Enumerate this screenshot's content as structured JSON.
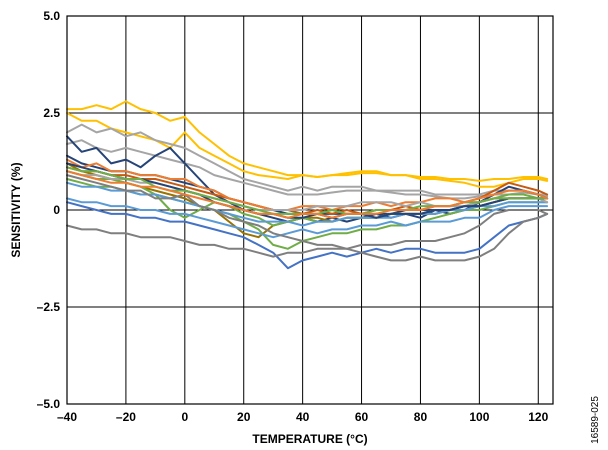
{
  "chart_data": {
    "type": "line",
    "xlabel": "TEMPERATURE (°C)",
    "ylabel": "SENSITIVITY (%)",
    "xlim": [
      -40,
      125
    ],
    "ylim": [
      -5.0,
      5.0
    ],
    "x_ticks": [
      -40,
      -20,
      0,
      20,
      40,
      60,
      80,
      100,
      120
    ],
    "x_tick_labels": [
      "–40",
      "–20",
      "0",
      "20",
      "40",
      "60",
      "80",
      "100",
      "120"
    ],
    "y_ticks": [
      -5.0,
      -2.5,
      0,
      2.5,
      5.0
    ],
    "y_tick_labels": [
      "–5.0",
      "–2.5",
      "0",
      "2.5",
      "5.0"
    ],
    "grid": true,
    "legend": "none",
    "figure_id": "16589-025",
    "x": [
      -40,
      -35,
      -30,
      -25,
      -20,
      -15,
      -10,
      -5,
      0,
      5,
      10,
      15,
      20,
      25,
      30,
      35,
      40,
      45,
      50,
      55,
      60,
      65,
      70,
      75,
      80,
      85,
      90,
      95,
      100,
      105,
      110,
      115,
      120,
      123
    ],
    "series": [
      {
        "color": "#FFC000",
        "values": [
          2.6,
          2.6,
          2.7,
          2.6,
          2.8,
          2.6,
          2.5,
          2.3,
          2.4,
          2.0,
          1.7,
          1.4,
          1.2,
          1.1,
          1.0,
          0.9,
          0.9,
          0.85,
          0.9,
          0.9,
          0.95,
          0.95,
          0.9,
          0.9,
          0.85,
          0.85,
          0.8,
          0.8,
          0.75,
          0.8,
          0.8,
          0.85,
          0.85,
          0.8
        ]
      },
      {
        "color": "#FFC000",
        "values": [
          2.5,
          2.3,
          2.3,
          2.1,
          2.0,
          1.9,
          1.8,
          1.6,
          2.0,
          1.6,
          1.4,
          1.2,
          1.0,
          0.9,
          0.85,
          0.8,
          0.9,
          0.85,
          0.9,
          0.95,
          1.0,
          1.0,
          0.9,
          0.9,
          0.8,
          0.8,
          0.75,
          0.7,
          0.6,
          0.6,
          0.7,
          0.8,
          0.8,
          0.75
        ]
      },
      {
        "color": "#A5A5A5",
        "values": [
          2.0,
          2.2,
          2.0,
          2.1,
          1.9,
          2.0,
          1.8,
          1.7,
          1.6,
          1.4,
          1.2,
          1.0,
          0.8,
          0.7,
          0.6,
          0.5,
          0.6,
          0.5,
          0.6,
          0.6,
          0.6,
          0.5,
          0.5,
          0.5,
          0.5,
          0.4,
          0.4,
          0.4,
          0.4,
          0.5,
          0.5,
          0.5,
          0.4,
          0.4
        ]
      },
      {
        "color": "#A5A5A5",
        "values": [
          1.7,
          1.8,
          1.6,
          1.5,
          1.6,
          1.5,
          1.4,
          1.3,
          1.2,
          1.1,
          0.9,
          0.8,
          0.7,
          0.6,
          0.5,
          0.4,
          0.4,
          0.4,
          0.45,
          0.5,
          0.5,
          0.5,
          0.45,
          0.4,
          0.4,
          0.35,
          0.3,
          0.3,
          0.35,
          0.4,
          0.4,
          0.45,
          0.4,
          0.35
        ]
      },
      {
        "color": "#264478",
        "values": [
          1.9,
          1.5,
          1.6,
          1.2,
          1.3,
          1.1,
          1.4,
          1.6,
          1.2,
          0.8,
          0.4,
          0.2,
          0.0,
          -0.1,
          -0.2,
          -0.3,
          -0.2,
          -0.3,
          -0.2,
          -0.3,
          -0.2,
          -0.1,
          -0.2,
          -0.1,
          -0.2,
          0.0,
          -0.1,
          0.0,
          0.2,
          0.4,
          0.6,
          0.5,
          0.4,
          0.3
        ]
      },
      {
        "color": "#264478",
        "values": [
          1.4,
          1.2,
          1.1,
          1.0,
          1.0,
          0.9,
          0.9,
          0.8,
          0.7,
          0.6,
          0.5,
          0.3,
          0.2,
          0.1,
          0.0,
          -0.1,
          -0.1,
          -0.1,
          -0.1,
          -0.1,
          -0.1,
          -0.1,
          -0.1,
          0.0,
          0.0,
          0.0,
          0.0,
          0.1,
          0.1,
          0.2,
          0.3,
          0.3,
          0.3,
          0.3
        ]
      },
      {
        "color": "#C55A11",
        "values": [
          1.1,
          1.0,
          1.0,
          0.9,
          0.9,
          0.8,
          0.8,
          0.7,
          0.6,
          0.5,
          0.4,
          0.3,
          0.2,
          0.1,
          0.0,
          0.0,
          -0.1,
          0.0,
          -0.1,
          0.0,
          -0.1,
          0.0,
          0.0,
          0.1,
          0.0,
          0.1,
          0.1,
          0.2,
          0.3,
          0.5,
          0.7,
          0.6,
          0.5,
          0.4
        ]
      },
      {
        "color": "#ED7D31",
        "values": [
          1.3,
          1.1,
          1.2,
          1.0,
          1.0,
          0.9,
          0.9,
          0.8,
          0.8,
          0.6,
          0.5,
          0.3,
          0.2,
          0.1,
          0.0,
          0.0,
          0.1,
          0.1,
          0.0,
          0.1,
          0.1,
          0.2,
          0.1,
          0.2,
          0.2,
          0.3,
          0.3,
          0.2,
          0.2,
          0.3,
          0.3,
          0.3,
          0.3,
          0.2
        ]
      },
      {
        "color": "#997300",
        "values": [
          1.2,
          1.0,
          0.9,
          0.8,
          0.7,
          0.6,
          0.5,
          0.4,
          0.3,
          0.1,
          0.0,
          -0.3,
          -0.6,
          -0.7,
          -0.4,
          -0.3,
          -0.2,
          -0.2,
          -0.3,
          -0.2,
          -0.2,
          -0.2,
          -0.1,
          -0.1,
          -0.1,
          -0.1,
          0.0,
          0.0,
          0.1,
          0.2,
          0.3,
          0.3,
          0.3,
          0.3
        ]
      },
      {
        "color": "#70AD47",
        "values": [
          1.0,
          0.9,
          0.8,
          0.8,
          0.7,
          0.6,
          0.4,
          0.0,
          -0.2,
          0.0,
          0.2,
          0.1,
          -0.1,
          -0.2,
          -0.4,
          -0.3,
          -0.2,
          -0.3,
          -0.3,
          -0.2,
          -0.2,
          -0.2,
          -0.1,
          -0.1,
          -0.1,
          0.0,
          0.0,
          0.1,
          0.2,
          0.3,
          0.4,
          0.4,
          0.3,
          0.3
        ]
      },
      {
        "color": "#70AD47",
        "values": [
          0.8,
          0.7,
          0.6,
          0.6,
          0.5,
          0.4,
          0.4,
          0.3,
          0.2,
          0.1,
          0.0,
          -0.1,
          -0.3,
          -0.5,
          -0.9,
          -1.0,
          -0.8,
          -0.7,
          -0.6,
          -0.6,
          -0.5,
          -0.5,
          -0.4,
          -0.4,
          -0.3,
          -0.2,
          -0.1,
          0.0,
          0.0,
          0.1,
          0.2,
          0.2,
          0.2,
          0.2
        ]
      },
      {
        "color": "#4472C4",
        "values": [
          0.2,
          0.1,
          0.0,
          -0.1,
          -0.1,
          -0.2,
          -0.2,
          -0.3,
          -0.3,
          -0.4,
          -0.5,
          -0.6,
          -0.7,
          -0.9,
          -1.1,
          -1.5,
          -1.3,
          -1.2,
          -1.1,
          -1.2,
          -1.1,
          -1.0,
          -1.1,
          -1.0,
          -1.0,
          -1.1,
          -1.1,
          -1.1,
          -1.0,
          -0.7,
          -0.4,
          -0.3,
          -0.2,
          -0.1
        ]
      },
      {
        "color": "#5B9BD5",
        "values": [
          0.3,
          0.2,
          0.2,
          0.1,
          0.1,
          0.0,
          0.0,
          -0.1,
          -0.1,
          -0.2,
          -0.3,
          -0.4,
          -0.5,
          -0.6,
          -0.7,
          -0.6,
          -0.5,
          -0.6,
          -0.5,
          -0.5,
          -0.4,
          -0.4,
          -0.3,
          -0.4,
          -0.3,
          -0.3,
          -0.3,
          -0.2,
          -0.2,
          0.0,
          0.1,
          0.1,
          0.1,
          0.1
        ]
      },
      {
        "color": "#5B9BD5",
        "values": [
          0.7,
          0.6,
          0.6,
          0.5,
          0.5,
          0.4,
          0.4,
          0.3,
          0.2,
          0.1,
          0.0,
          -0.1,
          -0.2,
          -0.3,
          -0.3,
          -0.3,
          -0.4,
          -0.3,
          -0.3,
          -0.2,
          -0.2,
          -0.2,
          -0.2,
          -0.1,
          -0.1,
          -0.1,
          0.0,
          0.0,
          0.1,
          0.1,
          0.2,
          0.2,
          0.2,
          0.2
        ]
      },
      {
        "color": "#7F7F7F",
        "values": [
          -0.4,
          -0.5,
          -0.5,
          -0.6,
          -0.6,
          -0.7,
          -0.7,
          -0.7,
          -0.8,
          -0.9,
          -0.9,
          -1.0,
          -1.0,
          -1.1,
          -1.2,
          -1.1,
          -1.1,
          -1.0,
          -1.0,
          -1.0,
          -0.9,
          -0.9,
          -0.9,
          -0.8,
          -0.8,
          -0.8,
          -0.7,
          -0.6,
          -0.4,
          -0.1,
          0.0,
          0.0,
          0.0,
          -0.1
        ]
      },
      {
        "color": "#7F7F7F",
        "values": [
          0.9,
          0.8,
          0.7,
          0.6,
          0.5,
          0.5,
          0.3,
          0.3,
          0.4,
          0.1,
          0.0,
          -0.2,
          -0.3,
          -0.4,
          -0.6,
          -0.7,
          -0.8,
          -0.9,
          -0.9,
          -1.0,
          -1.1,
          -1.2,
          -1.3,
          -1.3,
          -1.2,
          -1.3,
          -1.3,
          -1.3,
          -1.2,
          -1.0,
          -0.6,
          -0.3,
          -0.2,
          -0.1
        ]
      },
      {
        "color": "#A5A5A5",
        "values": [
          1.0,
          0.9,
          0.9,
          0.8,
          0.8,
          0.7,
          0.7,
          0.6,
          0.5,
          0.4,
          0.3,
          0.2,
          0.1,
          0.0,
          0.0,
          0.0,
          0.0,
          0.1,
          0.1,
          0.1,
          0.2,
          0.2,
          0.2,
          0.1,
          0.2,
          0.1,
          0.1,
          0.1,
          0.2,
          0.3,
          0.3,
          0.3,
          0.3,
          0.2
        ]
      },
      {
        "color": "#264478",
        "values": [
          1.2,
          1.1,
          1.0,
          0.9,
          0.8,
          0.8,
          0.7,
          0.6,
          0.5,
          0.4,
          0.2,
          0.1,
          0.0,
          -0.1,
          -0.1,
          -0.2,
          -0.2,
          -0.1,
          -0.2,
          -0.1,
          -0.1,
          -0.2,
          -0.1,
          -0.1,
          -0.1,
          0.0,
          0.0,
          0.1,
          0.1,
          0.2,
          0.3,
          0.3,
          0.3,
          0.3
        ]
      },
      {
        "color": "#70AD47",
        "values": [
          1.1,
          1.0,
          1.0,
          0.9,
          0.8,
          0.8,
          0.6,
          0.5,
          0.5,
          0.4,
          0.3,
          0.2,
          0.1,
          0.0,
          -0.1,
          -0.1,
          -0.1,
          -0.1,
          0.0,
          -0.1,
          -0.1,
          0.0,
          0.0,
          0.0,
          0.1,
          0.1,
          0.1,
          0.2,
          0.2,
          0.3,
          0.3,
          0.3,
          0.3,
          0.3
        ]
      },
      {
        "color": "#ED7D31",
        "values": [
          1.0,
          0.9,
          0.8,
          0.7,
          0.7,
          0.6,
          0.6,
          0.5,
          0.4,
          0.3,
          0.2,
          0.1,
          0.0,
          -0.1,
          -0.1,
          -0.2,
          -0.1,
          -0.1,
          -0.2,
          -0.1,
          -0.1,
          -0.1,
          0.0,
          0.0,
          0.0,
          0.1,
          0.1,
          0.2,
          0.3,
          0.4,
          0.5,
          0.5,
          0.4,
          0.3
        ]
      }
    ]
  }
}
